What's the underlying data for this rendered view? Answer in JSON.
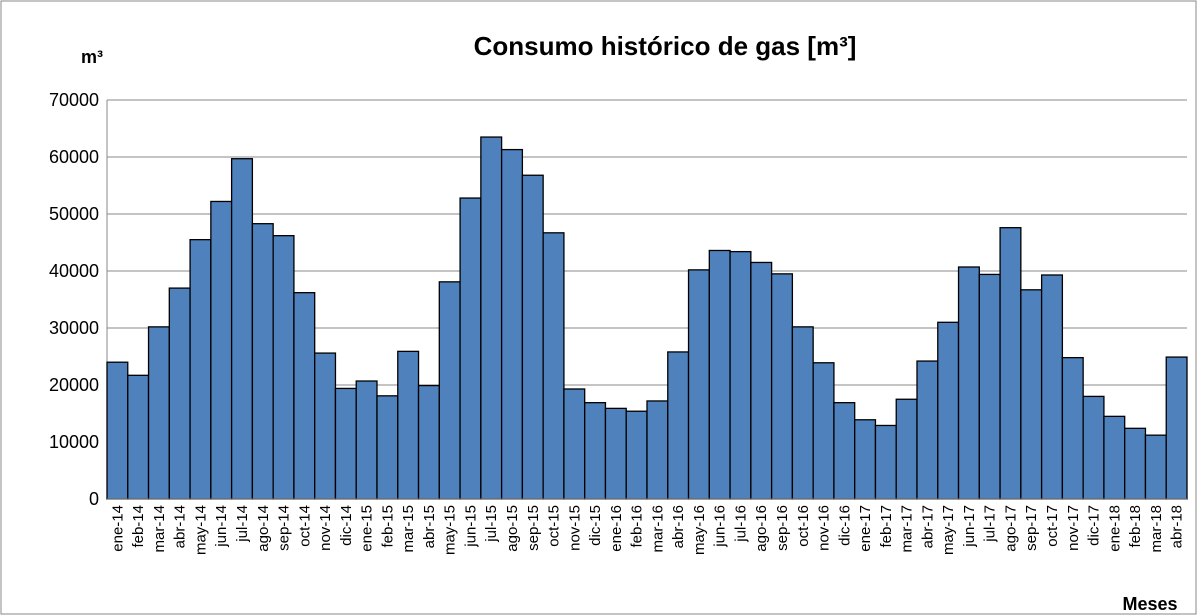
{
  "chart_data": {
    "type": "bar",
    "title": "Consumo histórico de gas [m³]",
    "y_label": "m³",
    "x_label": "Meses",
    "categories": [
      "ene-14",
      "feb-14",
      "mar-14",
      "abr-14",
      "may-14",
      "jun-14",
      "jul-14",
      "ago-14",
      "sep-14",
      "oct-14",
      "nov-14",
      "dic-14",
      "ene-15",
      "feb-15",
      "mar-15",
      "abr-15",
      "may-15",
      "jun-15",
      "jul-15",
      "ago-15",
      "sep-15",
      "oct-15",
      "nov-15",
      "dic-15",
      "ene-16",
      "feb-16",
      "mar-16",
      "abr-16",
      "may-16",
      "jun-16",
      "jul-16",
      "ago-16",
      "sep-16",
      "oct-16",
      "nov-16",
      "dic-16",
      "ene-17",
      "feb-17",
      "mar-17",
      "abr-17",
      "may-17",
      "jun-17",
      "jul-17",
      "ago-17",
      "sep-17",
      "oct-17",
      "nov-17",
      "dic-17",
      "ene-18",
      "feb-18",
      "mar-18",
      "abr-18"
    ],
    "values": [
      24000,
      21700,
      30200,
      37000,
      45500,
      52200,
      59700,
      48300,
      46200,
      36200,
      25600,
      19400,
      20700,
      18100,
      25900,
      19900,
      38100,
      52800,
      63500,
      61300,
      56800,
      46700,
      19300,
      16900,
      15900,
      15400,
      17200,
      25800,
      40200,
      43600,
      43400,
      41500,
      39500,
      30200,
      23900,
      16900,
      13900,
      12900,
      17500,
      24200,
      31000,
      40700,
      39400,
      47600,
      36700,
      39300,
      24800,
      18000,
      14500,
      12400,
      11200,
      24900
    ],
    "color": "#4f81bd",
    "ylim": [
      0,
      70000
    ],
    "yticks": [
      0,
      10000,
      20000,
      30000,
      40000,
      50000,
      60000,
      70000
    ],
    "grid": true
  }
}
